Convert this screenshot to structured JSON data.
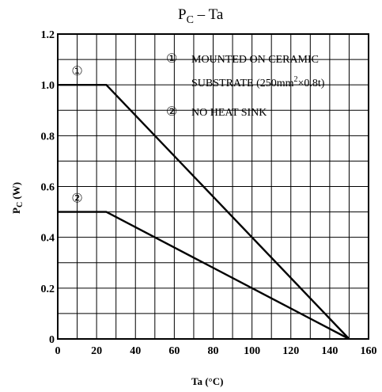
{
  "chart_data": {
    "type": "line",
    "title_main": "P",
    "title_sub": "C",
    "title_rest": " – Ta",
    "ylabel_main": "P",
    "ylabel_sub": "C",
    "ylabel_rest": "  (W)",
    "xlabel": "Ta  (°C)",
    "xlim": [
      0,
      160
    ],
    "ylim": [
      0,
      1.2
    ],
    "xticks": [
      0,
      20,
      40,
      60,
      80,
      100,
      120,
      140,
      160
    ],
    "xtick_labels": [
      "0",
      "20",
      "40",
      "60",
      "80",
      "100",
      "120",
      "140",
      "160"
    ],
    "yticks": [
      0,
      0.2,
      0.4,
      0.6,
      0.8,
      1.0,
      1.2
    ],
    "ytick_labels": [
      "0",
      "0.2",
      "0.4",
      "0.6",
      "0.8",
      "1.0",
      "1.2"
    ],
    "grid": true,
    "series": [
      {
        "name": "①",
        "x": [
          0,
          25,
          150
        ],
        "y": [
          1.0,
          1.0,
          0
        ],
        "marker": "①"
      },
      {
        "name": "②",
        "x": [
          0,
          25,
          150
        ],
        "y": [
          0.5,
          0.5,
          0
        ],
        "marker": "②"
      }
    ],
    "legend": {
      "placement": "top-right",
      "entries": [
        {
          "symbol": "①",
          "line1": "MOUNTED ON CERAMIC",
          "line2_pre": "SUBSTRATE (250mm",
          "line2_sup": "2",
          "line2_post": "×0.8t)"
        },
        {
          "symbol": "②",
          "line1": "NO HEAT SINK"
        }
      ]
    }
  }
}
